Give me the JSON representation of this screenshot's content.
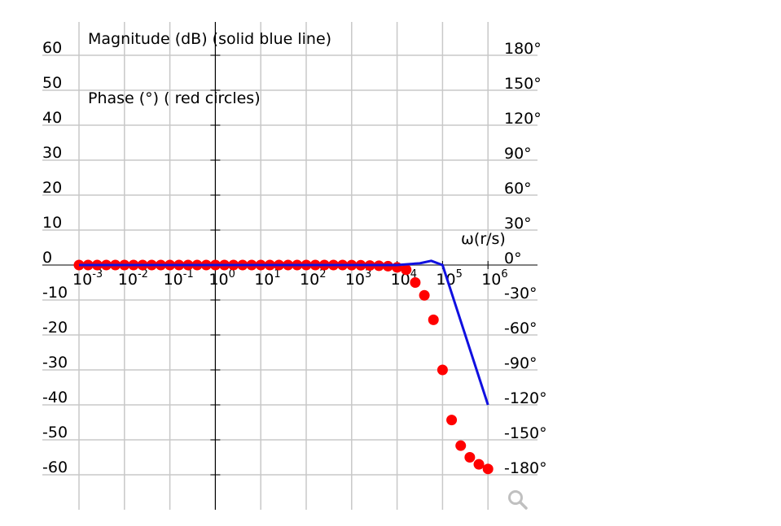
{
  "legend": {
    "magnitude": "Magnitude (dB) (solid blue line)",
    "phase": "Phase (°) ( red circles)"
  },
  "x_axis_label": "ω(r/s)",
  "colors": {
    "magnitude_line": "#1010e0",
    "phase_dots": "#ff0000",
    "grid": "#c8c8c8",
    "axis": "#000000",
    "zoom_icon": "#c0c0c0"
  },
  "chart_data": {
    "type": "line",
    "title": "",
    "xscale": "log",
    "xlabel": "ω(r/s)",
    "ylabel_left": "Magnitude (dB)",
    "ylabel_right": "Phase (°)",
    "xlim": [
      0.001,
      1000000
    ],
    "ylim_left": [
      -60,
      60
    ],
    "ylim_right": [
      -180,
      180
    ],
    "x_tick_labels": [
      "10^-3",
      "10^-2",
      "10^-1",
      "10^0",
      "10^1",
      "10^2",
      "10^3",
      "10^4",
      "10^5",
      "10^6"
    ],
    "x_tick_exponents": [
      -3,
      -2,
      -1,
      0,
      1,
      2,
      3,
      4,
      5,
      6
    ],
    "y_left_ticks": [
      60,
      50,
      40,
      30,
      20,
      10,
      0,
      -10,
      -20,
      -30,
      -40,
      -50,
      -60
    ],
    "y_right_ticks": [
      "180°",
      "150°",
      "120°",
      "90°",
      "60°",
      "30°",
      "0°",
      "-30°",
      "-60°",
      "-90°",
      "-120°",
      "-150°",
      "-180°"
    ],
    "grid": true,
    "legend_position": "top-left (text annotations)",
    "series": [
      {
        "name": "Magnitude (dB)",
        "style": "solid blue line",
        "log10_w": [
          -3,
          4,
          4.5,
          4.75,
          5,
          6
        ],
        "values": [
          0,
          0,
          0.5,
          1.2,
          0,
          -40
        ]
      },
      {
        "name": "Phase (°)",
        "style": "red circles",
        "log10_w": [
          -3,
          -2.8,
          -2.6,
          -2.4,
          -2.2,
          -2,
          -1.8,
          -1.6,
          -1.4,
          -1.2,
          -1,
          -0.8,
          -0.6,
          -0.4,
          -0.2,
          0,
          0.2,
          0.4,
          0.6,
          0.8,
          1,
          1.2,
          1.4,
          1.6,
          1.8,
          2,
          2.2,
          2.4,
          2.6,
          2.8,
          3,
          3.2,
          3.4,
          3.6,
          3.8,
          4,
          4.2,
          4.4,
          4.6,
          4.8,
          5,
          5.2,
          5.4,
          5.6,
          5.8,
          6
        ],
        "values": [
          0,
          0,
          0,
          0,
          0,
          0,
          0,
          0,
          0,
          0,
          0,
          0,
          0,
          0,
          0,
          0,
          0,
          0,
          0,
          0,
          0,
          0,
          0,
          0,
          0,
          0,
          0,
          0,
          0,
          0,
          -0.1,
          -0.2,
          -0.4,
          -0.6,
          -1,
          -2,
          -4,
          -15,
          -26,
          -47,
          -90,
          -133,
          -155,
          -165,
          -171,
          -175
        ]
      }
    ]
  },
  "toolbar": {
    "zoom_icon": "magnifier-icon"
  }
}
